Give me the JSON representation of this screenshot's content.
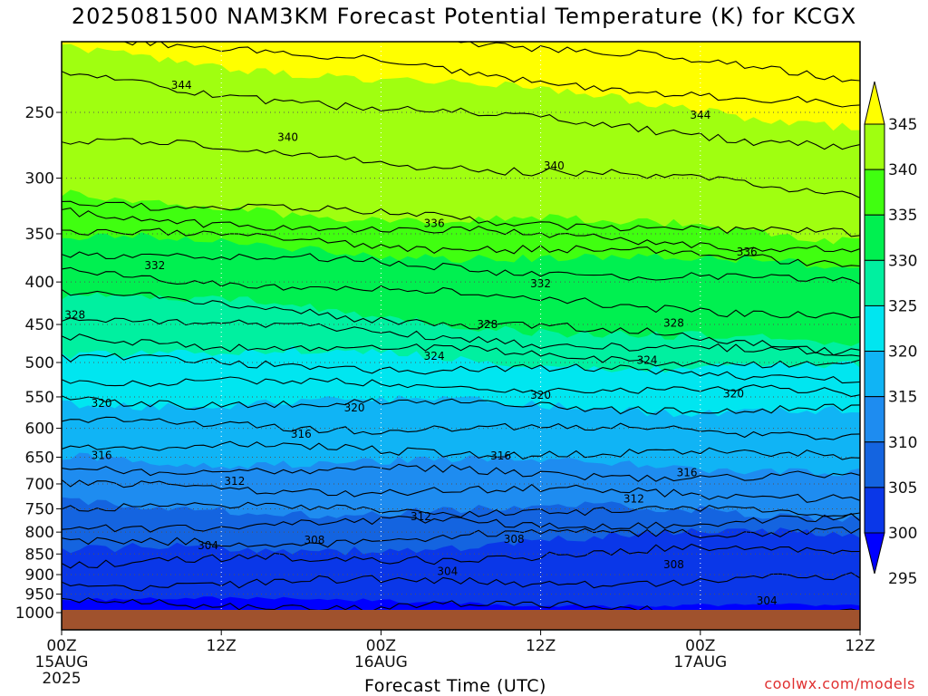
{
  "title": "2025081500 NAM3KM Forecast Potential Temperature (K) for KCGX",
  "watermark": "coolwx.com/models",
  "chart_data": {
    "type": "heatmap",
    "title": "2025081500 NAM3KM Forecast Potential Temperature (K) for KCGX",
    "xlabel": "Forecast Time (UTC)",
    "ylabel": "",
    "x_ticks": [
      {
        "hour": 0,
        "label": "00Z",
        "sub": "15AUG",
        "sub2": "2025"
      },
      {
        "hour": 12,
        "label": "12Z",
        "sub": "",
        "sub2": ""
      },
      {
        "hour": 24,
        "label": "00Z",
        "sub": "16AUG",
        "sub2": ""
      },
      {
        "hour": 36,
        "label": "12Z",
        "sub": "",
        "sub2": ""
      },
      {
        "hour": 48,
        "label": "00Z",
        "sub": "17AUG",
        "sub2": ""
      },
      {
        "hour": 60,
        "label": "12Z",
        "sub": "",
        "sub2": ""
      }
    ],
    "xlim_hours": [
      0,
      60
    ],
    "y_ticks": [
      250,
      300,
      350,
      400,
      450,
      500,
      550,
      600,
      650,
      700,
      750,
      800,
      850,
      900,
      950,
      1000
    ],
    "ylim_hpa": [
      200,
      1000
    ],
    "y_scale": "log-pressure",
    "colorbar": {
      "levels": [
        295,
        300,
        305,
        310,
        315,
        320,
        325,
        330,
        335,
        340,
        345
      ],
      "colors": [
        "#0000ff",
        "#0a37e8",
        "#1464e0",
        "#1e8cf0",
        "#10b4f5",
        "#00e6f0",
        "#00f0a0",
        "#00f050",
        "#40ff10",
        "#a0ff10",
        "#ffff00"
      ]
    },
    "contour_labels": [
      {
        "value": 344,
        "hour": 9.0,
        "p": 232
      },
      {
        "value": 344,
        "hour": 48.0,
        "p": 252
      },
      {
        "value": 340,
        "hour": 17.0,
        "p": 268
      },
      {
        "value": 340,
        "hour": 37.0,
        "p": 290
      },
      {
        "value": 336,
        "hour": 28.0,
        "p": 340
      },
      {
        "value": 336,
        "hour": 51.5,
        "p": 368
      },
      {
        "value": 332,
        "hour": 7.0,
        "p": 382
      },
      {
        "value": 332,
        "hour": 36.0,
        "p": 402
      },
      {
        "value": 328,
        "hour": 1.0,
        "p": 438
      },
      {
        "value": 328,
        "hour": 32.0,
        "p": 450
      },
      {
        "value": 328,
        "hour": 46.0,
        "p": 448
      },
      {
        "value": 324,
        "hour": 28.0,
        "p": 491
      },
      {
        "value": 324,
        "hour": 44.0,
        "p": 497
      },
      {
        "value": 320,
        "hour": 3.0,
        "p": 560
      },
      {
        "value": 320,
        "hour": 22.0,
        "p": 567
      },
      {
        "value": 320,
        "hour": 36.0,
        "p": 547
      },
      {
        "value": 320,
        "hour": 50.5,
        "p": 545
      },
      {
        "value": 316,
        "hour": 18.0,
        "p": 610
      },
      {
        "value": 316,
        "hour": 3.0,
        "p": 647
      },
      {
        "value": 316,
        "hour": 33.0,
        "p": 648
      },
      {
        "value": 316,
        "hour": 47.0,
        "p": 678
      },
      {
        "value": 312,
        "hour": 13.0,
        "p": 695
      },
      {
        "value": 312,
        "hour": 27.0,
        "p": 766
      },
      {
        "value": 312,
        "hour": 43.0,
        "p": 730
      },
      {
        "value": 308,
        "hour": 19.0,
        "p": 818
      },
      {
        "value": 308,
        "hour": 34.0,
        "p": 816
      },
      {
        "value": 308,
        "hour": 46.0,
        "p": 875
      },
      {
        "value": 304,
        "hour": 11.0,
        "p": 830
      },
      {
        "value": 304,
        "hour": 29.0,
        "p": 892
      },
      {
        "value": 304,
        "hour": 53.0,
        "p": 968
      }
    ],
    "band_boundaries": [
      {
        "theta": 345,
        "p_start": 209,
        "p_end": 258
      },
      {
        "theta": 340,
        "p_start": 318,
        "p_end": 353
      },
      {
        "theta": 335,
        "p_start": 355,
        "p_end": 385
      },
      {
        "theta": 330,
        "p_start": 413,
        "p_end": 482
      },
      {
        "theta": 325,
        "p_start": 482,
        "p_end": 510
      },
      {
        "theta": 320,
        "p_start": 555,
        "p_end": 570
      },
      {
        "theta": 315,
        "p_start": 650,
        "p_end": 670
      },
      {
        "theta": 310,
        "p_start": 745,
        "p_end": 760
      },
      {
        "theta": 305,
        "p_start": 852,
        "p_end": 800
      },
      {
        "theta": 300,
        "p_start": 974,
        "p_end": 995
      }
    ],
    "ground_color": "#a0522d"
  }
}
